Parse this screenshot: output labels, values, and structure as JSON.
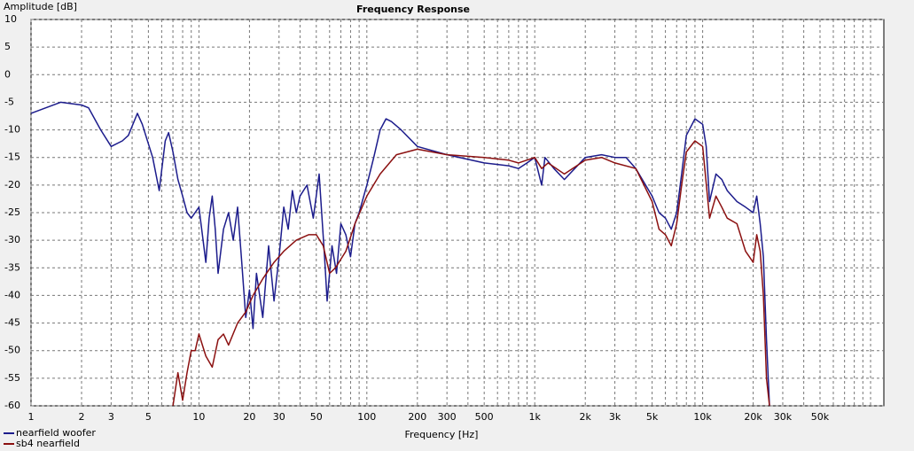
{
  "chart_data": {
    "type": "line",
    "title": "Frequency Response",
    "ylabel": "Amplitude [dB]",
    "xlabel": "Frequency [Hz]",
    "xlog": true,
    "grid": true,
    "xlim": [
      1,
      120000
    ],
    "ylim": [
      -60,
      10
    ],
    "yticks": [
      10,
      5,
      0,
      -5,
      -10,
      -15,
      -20,
      -25,
      -30,
      -35,
      -40,
      -45,
      -50,
      -55,
      -60
    ],
    "xticks": [
      1,
      2,
      3,
      5,
      10,
      20,
      30,
      50,
      100,
      200,
      300,
      500,
      {
        "value": 1000,
        "label": "1k"
      },
      {
        "value": 2000,
        "label": "2k"
      },
      {
        "value": 3000,
        "label": "3k"
      },
      {
        "value": 5000,
        "label": "5k"
      },
      {
        "value": 10000,
        "label": "10k"
      },
      {
        "value": 20000,
        "label": "20k"
      },
      {
        "value": 30000,
        "label": "30k"
      },
      {
        "value": 50000,
        "label": "50k"
      }
    ],
    "xminor": [
      4,
      6,
      7,
      8,
      9,
      40,
      60,
      70,
      80,
      90,
      400,
      600,
      700,
      800,
      900,
      4000,
      6000,
      7000,
      8000,
      9000,
      40000,
      60000,
      70000,
      80000,
      90000,
      100000
    ],
    "series": [
      {
        "name": "nearfield woofer",
        "color": "#1c1c8c",
        "x": [
          1,
          1.5,
          2,
          2.2,
          2.6,
          3,
          3.5,
          3.8,
          4.3,
          4.6,
          5.3,
          5.8,
          6.3,
          6.6,
          7,
          7.5,
          8,
          8.5,
          9,
          10,
          11,
          11.5,
          12,
          12.5,
          13,
          14,
          15,
          16,
          17,
          18,
          19,
          20,
          21,
          22,
          24,
          26,
          28,
          30,
          32,
          34,
          36,
          38,
          40,
          44,
          48,
          52,
          56,
          58,
          62,
          66,
          70,
          75,
          80,
          85,
          90,
          100,
          110,
          120,
          130,
          140,
          160,
          200,
          300,
          500,
          700,
          800,
          900,
          1000,
          1100,
          1150,
          1300,
          1500,
          2000,
          2500,
          3000,
          3500,
          4000,
          5000,
          5500,
          6000,
          6500,
          7000,
          7500,
          8000,
          9000,
          10000,
          10500,
          11000,
          12000,
          13000,
          14000,
          16000,
          18000,
          20000,
          21000,
          22000,
          23000,
          24000,
          25000
        ],
        "values": [
          -7,
          -5,
          -5.5,
          -6,
          -10,
          -13,
          -12,
          -11,
          -7,
          -9,
          -15,
          -21,
          -12,
          -10.5,
          -14,
          -19,
          -22,
          -25,
          -26,
          -24,
          -34,
          -26,
          -22,
          -28,
          -36,
          -28,
          -25,
          -30,
          -24,
          -34,
          -44,
          -39,
          -46,
          -36,
          -44,
          -31,
          -41,
          -33,
          -24,
          -28,
          -21,
          -25,
          -22,
          -20,
          -26,
          -18,
          -33,
          -41,
          -31,
          -36,
          -27,
          -29,
          -33,
          -27,
          -25,
          -20,
          -15,
          -10,
          -8,
          -8.5,
          -10,
          -13,
          -14.5,
          -16,
          -16.5,
          -17,
          -16,
          -15,
          -20,
          -15,
          -17,
          -19,
          -15,
          -14.5,
          -15,
          -15,
          -17,
          -22,
          -25,
          -26,
          -28,
          -25,
          -18,
          -11,
          -8,
          -9,
          -13,
          -23,
          -18,
          -19,
          -21,
          -23,
          -24,
          -25,
          -22,
          -27,
          -33,
          -48,
          -60
        ]
      },
      {
        "name": "sb4 nearfield",
        "color": "#8b1010",
        "x": [
          7,
          7.5,
          8,
          8.5,
          9,
          9.5,
          10,
          11,
          12,
          13,
          14,
          15,
          17,
          19,
          21,
          24,
          28,
          32,
          38,
          45,
          50,
          55,
          60,
          65,
          75,
          85,
          100,
          120,
          150,
          200,
          300,
          500,
          700,
          800,
          1000,
          1100,
          1200,
          1500,
          2000,
          2500,
          3000,
          4000,
          5000,
          5500,
          6000,
          6500,
          7000,
          7500,
          8000,
          9000,
          10000,
          11000,
          12000,
          13000,
          14000,
          16000,
          18000,
          20000,
          21000,
          22000,
          23000,
          24000,
          25000
        ],
        "values": [
          -60,
          -54,
          -59,
          -54,
          -50,
          -50,
          -47,
          -51,
          -53,
          -48,
          -47,
          -49,
          -45,
          -43,
          -40,
          -37,
          -34,
          -32,
          -30,
          -29,
          -29,
          -31,
          -36,
          -35,
          -32,
          -27,
          -22,
          -18,
          -14.5,
          -13.5,
          -14.5,
          -15,
          -15.5,
          -16,
          -15,
          -17,
          -16,
          -18,
          -15.5,
          -15,
          -16,
          -17,
          -23,
          -28,
          -29,
          -31,
          -27,
          -20,
          -14,
          -12,
          -13,
          -26,
          -22,
          -24,
          -26,
          -27,
          -32,
          -34,
          -29,
          -32,
          -40,
          -55,
          -60
        ]
      }
    ]
  }
}
